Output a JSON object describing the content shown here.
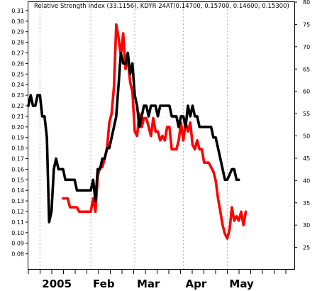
{
  "chart_data": {
    "type": "line",
    "legend_text": "Relative Strength Index (33.1156), KDYR 24AT(0.14700, 0.15700, 0.14600, 0.15300)",
    "legend_placement": "top",
    "grid": true,
    "left_axis": {
      "ticks": [
        "0.31",
        "0.30",
        "0.29",
        "0.28",
        "0.27",
        "0.26",
        "0.25",
        "0.24",
        "0.23",
        "0.22",
        "0.21",
        "0.20",
        "0.19",
        "0.18",
        "0.17",
        "0.16",
        "0.15",
        "0.14",
        "0.13",
        "0.12",
        "0.11",
        "0.10",
        "0.09",
        "0.08"
      ],
      "range": [
        0.065,
        0.318
      ]
    },
    "right_axis": {
      "ticks": [
        "80",
        "75",
        "70",
        "65",
        "60",
        "55",
        "50",
        "45",
        "40",
        "35",
        "30",
        "25"
      ],
      "range": [
        20,
        80
      ]
    },
    "x_range": [
      0,
      115
    ],
    "month_labels": [
      {
        "label": "2005",
        "x": 5
      },
      {
        "label": "Feb",
        "x": 27
      },
      {
        "label": "Mar",
        "x": 46
      },
      {
        "label": "Apr",
        "x": 67
      },
      {
        "label": "May",
        "x": 86
      }
    ],
    "gridlines_x": [
      5,
      27,
      46,
      67,
      86
    ],
    "series": [
      {
        "color": "#000000",
        "axis": "left",
        "points": [
          [
            0,
            0.22
          ],
          [
            1,
            0.23
          ],
          [
            2,
            0.22
          ],
          [
            3,
            0.22
          ],
          [
            4,
            0.23
          ],
          [
            5,
            0.23
          ],
          [
            6,
            0.21
          ],
          [
            7,
            0.21
          ],
          [
            8,
            0.19
          ],
          [
            9,
            0.11
          ],
          [
            10,
            0.12
          ],
          [
            11,
            0.16
          ],
          [
            12,
            0.17
          ],
          [
            13,
            0.16
          ],
          [
            14,
            0.16
          ],
          [
            15,
            0.16
          ],
          [
            16,
            0.15
          ],
          [
            17,
            0.15
          ],
          [
            18,
            0.15
          ],
          [
            19,
            0.15
          ],
          [
            20,
            0.15
          ],
          [
            21,
            0.14
          ],
          [
            22,
            0.14
          ],
          [
            23,
            0.14
          ],
          [
            24,
            0.14
          ],
          [
            25,
            0.14
          ],
          [
            26,
            0.14
          ],
          [
            27,
            0.14
          ],
          [
            28,
            0.15
          ],
          [
            29,
            0.13
          ],
          [
            30,
            0.16
          ],
          [
            31,
            0.16
          ],
          [
            32,
            0.17
          ],
          [
            33,
            0.17
          ],
          [
            34,
            0.18
          ],
          [
            35,
            0.18
          ],
          [
            36,
            0.19
          ],
          [
            37,
            0.2
          ],
          [
            38,
            0.21
          ],
          [
            39,
            0.24
          ],
          [
            40,
            0.27
          ],
          [
            41,
            0.26
          ],
          [
            42,
            0.26
          ],
          [
            43,
            0.27
          ],
          [
            44,
            0.25
          ],
          [
            45,
            0.26
          ],
          [
            46,
            0.23
          ],
          [
            47,
            0.22
          ],
          [
            48,
            0.2
          ],
          [
            49,
            0.21
          ],
          [
            50,
            0.22
          ],
          [
            51,
            0.22
          ],
          [
            52,
            0.21
          ],
          [
            53,
            0.22
          ],
          [
            54,
            0.22
          ],
          [
            55,
            0.22
          ],
          [
            56,
            0.21
          ],
          [
            57,
            0.22
          ],
          [
            58,
            0.22
          ],
          [
            59,
            0.22
          ],
          [
            60,
            0.22
          ],
          [
            61,
            0.22
          ],
          [
            62,
            0.21
          ],
          [
            63,
            0.21
          ],
          [
            64,
            0.21
          ],
          [
            65,
            0.2
          ],
          [
            66,
            0.21
          ],
          [
            67,
            0.21
          ],
          [
            68,
            0.2
          ],
          [
            69,
            0.22
          ],
          [
            70,
            0.21
          ],
          [
            71,
            0.22
          ],
          [
            72,
            0.21
          ],
          [
            73,
            0.21
          ],
          [
            74,
            0.2
          ],
          [
            75,
            0.2
          ],
          [
            76,
            0.2
          ],
          [
            77,
            0.2
          ],
          [
            78,
            0.2
          ],
          [
            79,
            0.2
          ],
          [
            80,
            0.19
          ],
          [
            81,
            0.19
          ],
          [
            82,
            0.18
          ],
          [
            83,
            0.17
          ],
          [
            84,
            0.16
          ],
          [
            85,
            0.15
          ],
          [
            86,
            0.15
          ],
          [
            87,
            0.155
          ],
          [
            88,
            0.16
          ],
          [
            89,
            0.16
          ],
          [
            90,
            0.15
          ],
          [
            91,
            0.15
          ]
        ]
      },
      {
        "color": "#ff0000",
        "axis": "right",
        "points": [
          [
            15,
            36
          ],
          [
            16,
            36
          ],
          [
            17,
            36
          ],
          [
            18,
            34
          ],
          [
            19,
            34
          ],
          [
            20,
            34
          ],
          [
            21,
            34
          ],
          [
            22,
            33
          ],
          [
            23,
            33
          ],
          [
            24,
            33
          ],
          [
            25,
            33
          ],
          [
            26,
            33
          ],
          [
            27,
            33
          ],
          [
            28,
            36
          ],
          [
            29,
            33
          ],
          [
            30,
            41
          ],
          [
            31,
            43
          ],
          [
            32,
            43
          ],
          [
            33,
            45
          ],
          [
            34,
            47
          ],
          [
            35,
            53
          ],
          [
            36,
            55
          ],
          [
            37,
            61
          ],
          [
            38,
            75
          ],
          [
            39,
            72
          ],
          [
            40,
            68
          ],
          [
            41,
            73
          ],
          [
            42,
            65
          ],
          [
            43,
            68
          ],
          [
            44,
            62
          ],
          [
            45,
            60
          ],
          [
            46,
            51
          ],
          [
            47,
            50
          ],
          [
            48,
            55
          ],
          [
            49,
            52
          ],
          [
            50,
            54
          ],
          [
            51,
            54
          ],
          [
            52,
            52
          ],
          [
            53,
            50
          ],
          [
            54,
            54
          ],
          [
            55,
            51
          ],
          [
            56,
            51
          ],
          [
            57,
            49
          ],
          [
            58,
            50
          ],
          [
            59,
            49
          ],
          [
            60,
            52
          ],
          [
            61,
            52
          ],
          [
            62,
            47
          ],
          [
            63,
            47
          ],
          [
            64,
            47
          ],
          [
            65,
            49
          ],
          [
            66,
            53
          ],
          [
            67,
            49
          ],
          [
            68,
            53
          ],
          [
            69,
            51
          ],
          [
            70,
            53
          ],
          [
            71,
            48
          ],
          [
            72,
            47
          ],
          [
            73,
            49
          ],
          [
            74,
            47
          ],
          [
            75,
            47
          ],
          [
            76,
            44
          ],
          [
            77,
            44
          ],
          [
            78,
            44
          ],
          [
            79,
            43
          ],
          [
            80,
            42
          ],
          [
            81,
            40
          ],
          [
            82,
            36
          ],
          [
            83,
            33
          ],
          [
            84,
            30
          ],
          [
            85,
            28
          ],
          [
            86,
            27
          ],
          [
            87,
            29
          ],
          [
            88,
            34
          ],
          [
            89,
            31
          ],
          [
            90,
            32
          ],
          [
            91,
            31
          ],
          [
            92,
            33
          ],
          [
            93,
            30
          ],
          [
            94,
            33
          ]
        ]
      }
    ]
  }
}
